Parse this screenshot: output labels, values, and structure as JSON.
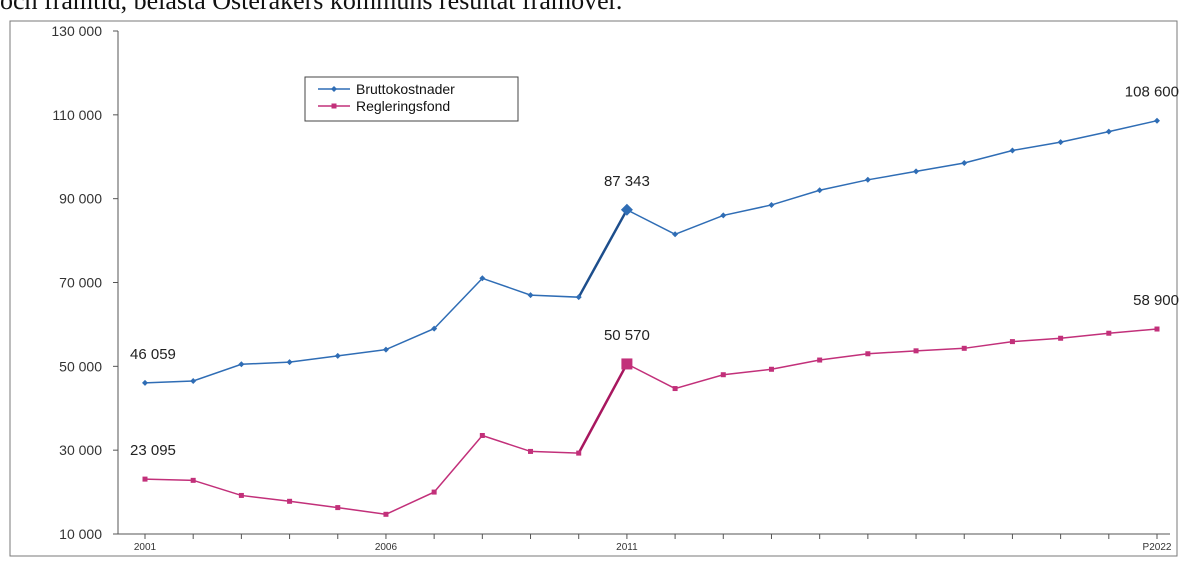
{
  "header_text": "och framtid, belasta Österåkers kommuns resultat framöver.",
  "colors": {
    "bruttokostnader": "#2f6db5",
    "regleringsfond": "#c2307a",
    "grid": "#d9d9d9",
    "axis": "#555555"
  },
  "chart_data": {
    "type": "line",
    "title": "",
    "xlabel": "",
    "ylabel": "",
    "ylim": [
      10000,
      130000
    ],
    "yticks": [
      "130 000",
      "110 000",
      "90 000",
      "70 000",
      "50 000",
      "30 000",
      "10 000"
    ],
    "ytick_values": [
      130000,
      110000,
      90000,
      70000,
      50000,
      30000,
      10000
    ],
    "x": [
      "2001",
      "2002",
      "2003",
      "2004",
      "2005",
      "2006",
      "2007",
      "2008",
      "2009",
      "2010",
      "2011",
      "2012",
      "2013",
      "2014",
      "2015",
      "2016",
      "2017",
      "2018",
      "2019",
      "2020",
      "2021",
      "P2022"
    ],
    "x_tick_labels": [
      {
        "index": 0,
        "label": "2001"
      },
      {
        "index": 5,
        "label": "2006"
      },
      {
        "index": 10,
        "label": "2011"
      },
      {
        "index": 21,
        "label": "P2022"
      }
    ],
    "legend_position": "top-left",
    "grid": false,
    "series": [
      {
        "name": "Bruttokostnader",
        "marker": "diamond",
        "values": [
          46059,
          46500,
          50500,
          51000,
          52500,
          54000,
          59000,
          71000,
          67000,
          66500,
          87343,
          81500,
          86000,
          88500,
          92000,
          94500,
          96500,
          98500,
          101500,
          103500,
          106000,
          108600
        ]
      },
      {
        "name": "Regleringsfond",
        "marker": "square",
        "values": [
          23095,
          22800,
          19200,
          17800,
          16300,
          14700,
          20000,
          33500,
          29700,
          29300,
          50570,
          44700,
          48000,
          49300,
          51500,
          53000,
          53700,
          54300,
          55900,
          56700,
          57900,
          58900
        ]
      }
    ],
    "annotations": [
      {
        "series": 0,
        "index": 0,
        "text": "46 059"
      },
      {
        "series": 0,
        "index": 10,
        "text": "87 343"
      },
      {
        "series": 0,
        "index": 21,
        "text": "108 600"
      },
      {
        "series": 1,
        "index": 0,
        "text": "23 095"
      },
      {
        "series": 1,
        "index": 10,
        "text": "50 570"
      },
      {
        "series": 1,
        "index": 21,
        "text": "58 900"
      }
    ]
  }
}
